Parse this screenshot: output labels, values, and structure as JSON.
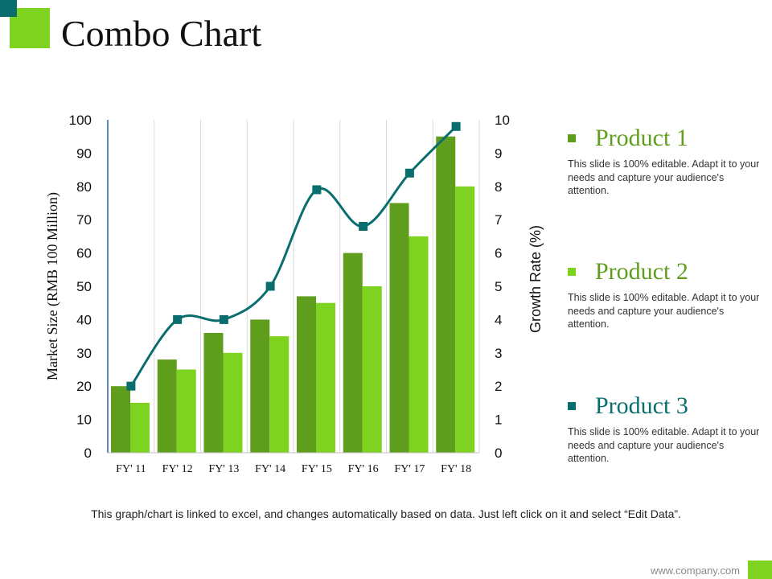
{
  "title": "Combo Chart",
  "chart_data": {
    "type": "bar",
    "categories": [
      "FY' 11",
      "FY' 12",
      "FY' 13",
      "FY' 14",
      "FY' 15",
      "FY' 16",
      "FY' 17",
      "FY' 18"
    ],
    "series": [
      {
        "name": "Product 1",
        "type": "bar",
        "axis": "left",
        "values": [
          20,
          28,
          36,
          40,
          47,
          60,
          75,
          95
        ]
      },
      {
        "name": "Product 2",
        "type": "bar",
        "axis": "left",
        "values": [
          15,
          25,
          30,
          35,
          45,
          50,
          65,
          80
        ]
      },
      {
        "name": "Product 3",
        "type": "line",
        "axis": "right",
        "values": [
          2,
          4,
          4,
          5,
          7.9,
          6.8,
          8.4,
          9.8
        ]
      }
    ],
    "ylabel": "Market Size (RMB 100 Million)",
    "ylabel_right": "Growth Rate (%)",
    "ylim": [
      0,
      100
    ],
    "ylim_right": [
      0,
      10
    ],
    "yticks": [
      0,
      10,
      20,
      30,
      40,
      50,
      60,
      70,
      80,
      90,
      100
    ],
    "yticks_right": [
      0,
      1,
      2,
      3,
      4,
      5,
      6,
      7,
      8,
      9,
      10
    ],
    "grid": "vertical",
    "legend_position": "right"
  },
  "colors": {
    "product1": "#5f9e1c",
    "product2": "#7ed321",
    "product3": "#0b6e6e"
  },
  "legend": [
    {
      "name": "Product 1",
      "description": "This slide is 100% editable. Adapt it to your needs and capture your audience's attention."
    },
    {
      "name": "Product 2",
      "description": "This slide is 100% editable. Adapt it to your needs and capture your audience's attention."
    },
    {
      "name": "Product 3",
      "description": "This slide is 100% editable. Adapt it to your needs and capture your audience's attention."
    }
  ],
  "footnote": "This graph/chart is linked to excel, and changes automatically based on data. Just left click on it and select “Edit Data”.",
  "website": "www.company.com"
}
